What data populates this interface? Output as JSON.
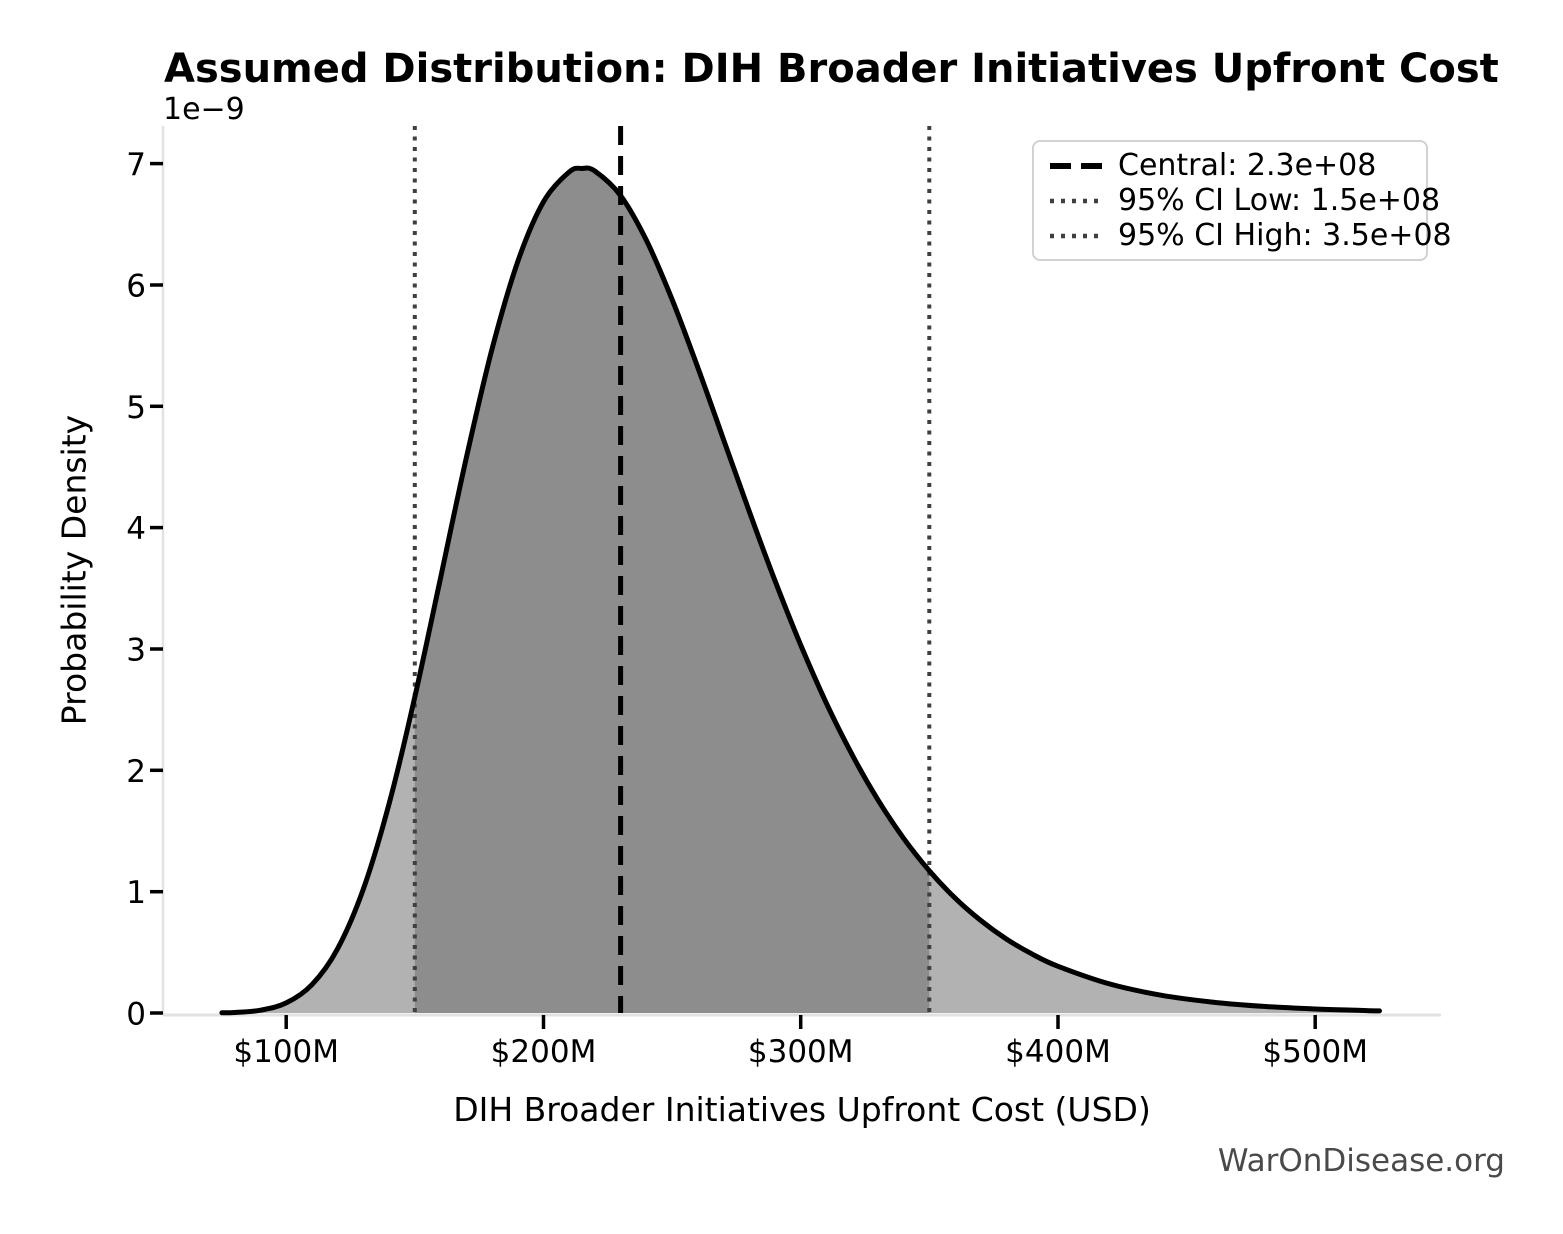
{
  "title": "Assumed Distribution: DIH Broader Initiatives Upfront Cost",
  "watermark": "WarOnDisease.org",
  "axes": {
    "x_label": "DIH Broader Initiatives Upfront Cost (USD)",
    "y_label": "Probability Density",
    "y_offset_text": "1e−9",
    "x_ticks": [
      {
        "value": 100,
        "label": "$100M"
      },
      {
        "value": 200,
        "label": "$200M"
      },
      {
        "value": 300,
        "label": "$300M"
      },
      {
        "value": 400,
        "label": "$400M"
      },
      {
        "value": 500,
        "label": "$500M"
      }
    ],
    "y_ticks": [
      0,
      1,
      2,
      3,
      4,
      5,
      6,
      7
    ]
  },
  "legend": {
    "items": [
      {
        "label": "Central: 2.3e+08",
        "style": "dashed",
        "color": "#000000"
      },
      {
        "label": "95% CI Low: 1.5e+08",
        "style": "dotted",
        "color": "#3f3f3f"
      },
      {
        "label": "95% CI High: 3.5e+08",
        "style": "dotted",
        "color": "#3f3f3f"
      }
    ]
  },
  "colors": {
    "curve": "#000000",
    "fill_outer": "#b2b2b2",
    "fill_ci": "#8d8d8d",
    "central_line": "#000000",
    "ci_line": "#3f3f3f",
    "spine": "#e2e2e2",
    "tick": "#000000",
    "watermark": "#4a4a4a"
  },
  "chart_data": {
    "type": "area",
    "title": "Assumed Distribution: DIH Broader Initiatives Upfront Cost",
    "xlabel": "DIH Broader Initiatives Upfront Cost (USD)",
    "ylabel": "Probability Density",
    "y_scale_note": "densities are in units of 1e-9 per USD",
    "xlim_musd": [
      52.5,
      548.5
    ],
    "ylim_1e9": [
      0,
      7.31
    ],
    "grid": false,
    "legend_position": "upper right",
    "distribution": {
      "family": "lognormal",
      "central_usd": 230000000,
      "ci95_low_usd": 150000000,
      "ci95_high_usd": 350000000
    },
    "vlines_musd": {
      "central": 230,
      "ci_low": 150,
      "ci_high": 350
    },
    "shaded_ci_region_musd": [
      150,
      350
    ],
    "curve": {
      "x_musd": [
        75,
        80,
        90,
        100,
        110,
        120,
        130,
        140,
        150,
        160,
        170,
        180,
        190,
        200,
        210,
        215,
        220,
        230,
        240,
        250,
        260,
        270,
        280,
        290,
        300,
        310,
        320,
        330,
        340,
        350,
        360,
        370,
        380,
        390,
        400,
        420,
        440,
        460,
        480,
        500,
        520,
        525
      ],
      "density_1e9": [
        0.002,
        0.004,
        0.023,
        0.083,
        0.233,
        0.53,
        1.023,
        1.725,
        2.604,
        3.587,
        4.575,
        5.471,
        6.191,
        6.685,
        6.931,
        6.96,
        6.938,
        6.736,
        6.368,
        5.88,
        5.32,
        4.727,
        4.133,
        3.563,
        3.033,
        2.552,
        2.128,
        1.757,
        1.44,
        1.172,
        0.947,
        0.762,
        0.609,
        0.485,
        0.385,
        0.24,
        0.147,
        0.09,
        0.054,
        0.033,
        0.02,
        0.017
      ]
    }
  }
}
